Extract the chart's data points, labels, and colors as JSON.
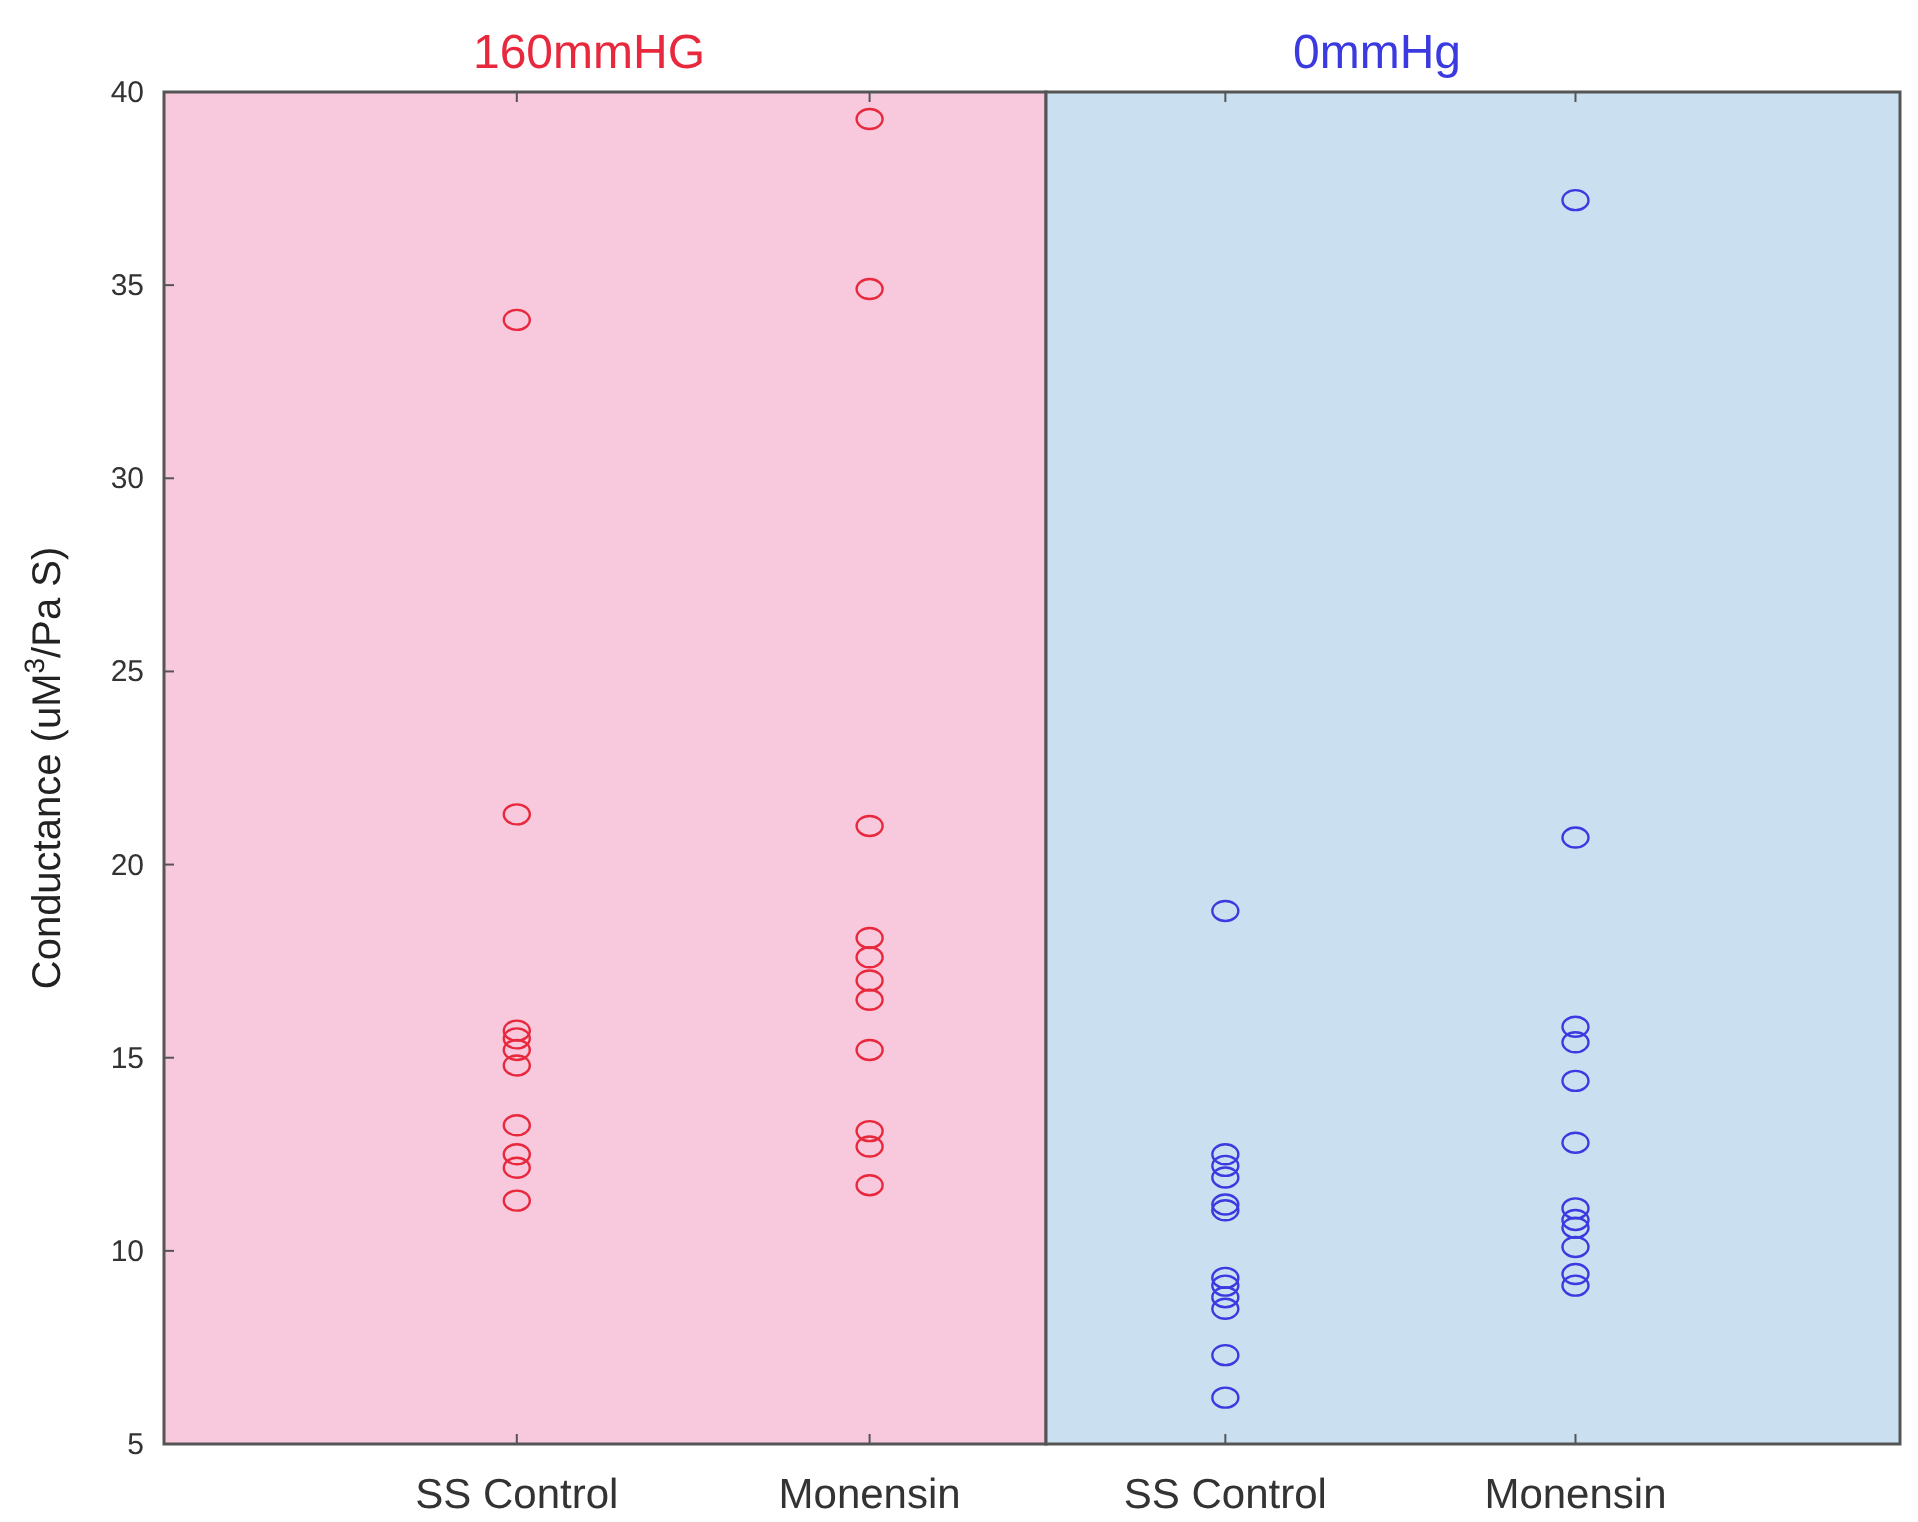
{
  "chart_data": [
    {
      "type": "scatter",
      "title": "160mmHG",
      "ylabel": "Conductance (uM$^{3}$/Pa S)",
      "categories": [
        "SS Control",
        "Monensin"
      ],
      "ylim": [
        5,
        40
      ],
      "yticks": [
        5,
        10,
        15,
        20,
        25,
        30,
        35,
        40
      ],
      "marker": "circle",
      "bands": [
        {
          "axis": "y",
          "from": 5,
          "to": 40,
          "color": "#f8c8dc"
        }
      ],
      "series": [
        {
          "color": "#e8283c",
          "x": [
            "SS Control",
            "SS Control",
            "SS Control",
            "SS Control",
            "SS Control",
            "SS Control",
            "SS Control",
            "SS Control",
            "SS Control",
            "SS Control",
            "Monensin",
            "Monensin",
            "Monensin",
            "Monensin",
            "Monensin",
            "Monensin",
            "Monensin",
            "Monensin",
            "Monensin",
            "Monensin",
            "Monensin"
          ],
          "values": [
            34.1,
            21.3,
            15.7,
            15.5,
            15.2,
            14.8,
            13.25,
            12.5,
            12.15,
            11.3,
            39.3,
            34.9,
            21.0,
            18.1,
            17.6,
            17.0,
            16.5,
            15.2,
            13.1,
            12.7,
            11.7
          ]
        }
      ]
    },
    {
      "type": "scatter",
      "title": "0mmHg",
      "categories": [
        "SS Control",
        "Monensin"
      ],
      "ylim": [
        5,
        40
      ],
      "tick_labels": "x",
      "marker": "circle",
      "bands": [
        {
          "axis": "y",
          "from": 5,
          "to": 40,
          "color": "#cadff0"
        }
      ],
      "series": [
        {
          "color": "#3a3ae0",
          "x": [
            "SS Control",
            "SS Control",
            "SS Control",
            "SS Control",
            "SS Control",
            "SS Control",
            "SS Control",
            "SS Control",
            "SS Control",
            "SS Control",
            "SS Control",
            "SS Control",
            "Monensin",
            "Monensin",
            "Monensin",
            "Monensin",
            "Monensin",
            "Monensin",
            "Monensin",
            "Monensin",
            "Monensin",
            "Monensin",
            "Monensin",
            "Monensin"
          ],
          "values": [
            18.8,
            12.5,
            12.2,
            11.9,
            11.2,
            11.05,
            9.3,
            9.1,
            8.8,
            8.5,
            7.3,
            6.2,
            37.2,
            20.7,
            15.8,
            15.4,
            14.4,
            12.8,
            11.1,
            10.8,
            10.6,
            10.1,
            9.4,
            9.1
          ]
        }
      ]
    }
  ]
}
